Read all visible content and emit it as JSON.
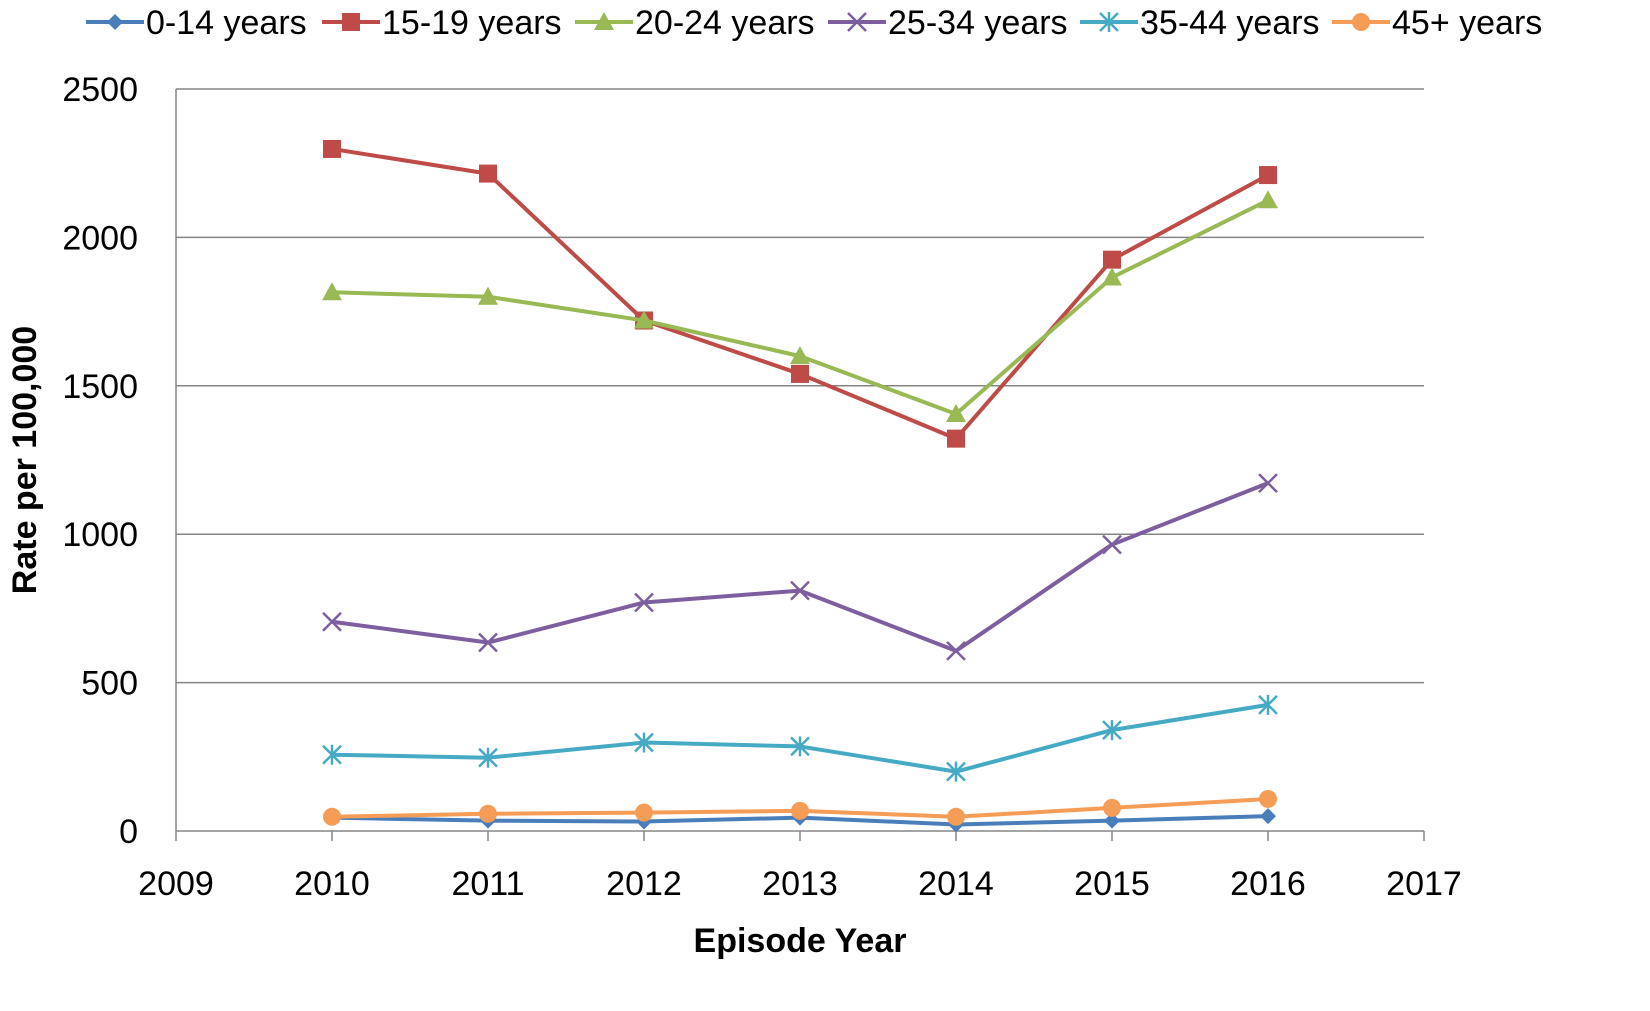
{
  "chart_data": {
    "type": "line",
    "title": "",
    "xlabel": "Episode Year",
    "ylabel": "Rate per 100,000",
    "xlim": [
      2009,
      2017
    ],
    "ylim": [
      0,
      2500
    ],
    "x_ticks": [
      "2009",
      "2010",
      "2011",
      "2012",
      "2013",
      "2014",
      "2015",
      "2016",
      "2017"
    ],
    "y_ticks": [
      "0",
      "500",
      "1000",
      "1500",
      "2000",
      "2500"
    ],
    "grid": "horizontal",
    "legend_position": "top",
    "x": [
      2010,
      2011,
      2012,
      2013,
      2014,
      2015,
      2016
    ],
    "series": [
      {
        "name": "0-14 years",
        "values": [
          45,
          35,
          32,
          45,
          22,
          35,
          50
        ],
        "color": "#4A7EBB",
        "marker": "diamond"
      },
      {
        "name": "15-19 years",
        "values": [
          2298,
          2215,
          1720,
          1540,
          1322,
          1925,
          2210
        ],
        "color": "#BE4B48",
        "marker": "square"
      },
      {
        "name": "20-24 years",
        "values": [
          1815,
          1800,
          1720,
          1600,
          1405,
          1865,
          2125
        ],
        "color": "#98B954",
        "marker": "triangle"
      },
      {
        "name": "25-34 years",
        "values": [
          705,
          635,
          770,
          810,
          607,
          965,
          1172
        ],
        "color": "#7D5FA0",
        "marker": "x"
      },
      {
        "name": "35-44 years",
        "values": [
          257,
          247,
          298,
          285,
          200,
          340,
          425
        ],
        "color": "#46AAC5",
        "marker": "star"
      },
      {
        "name": "45+ years",
        "values": [
          48,
          58,
          62,
          68,
          48,
          78,
          108
        ],
        "color": "#F59D56",
        "marker": "circle"
      }
    ]
  }
}
